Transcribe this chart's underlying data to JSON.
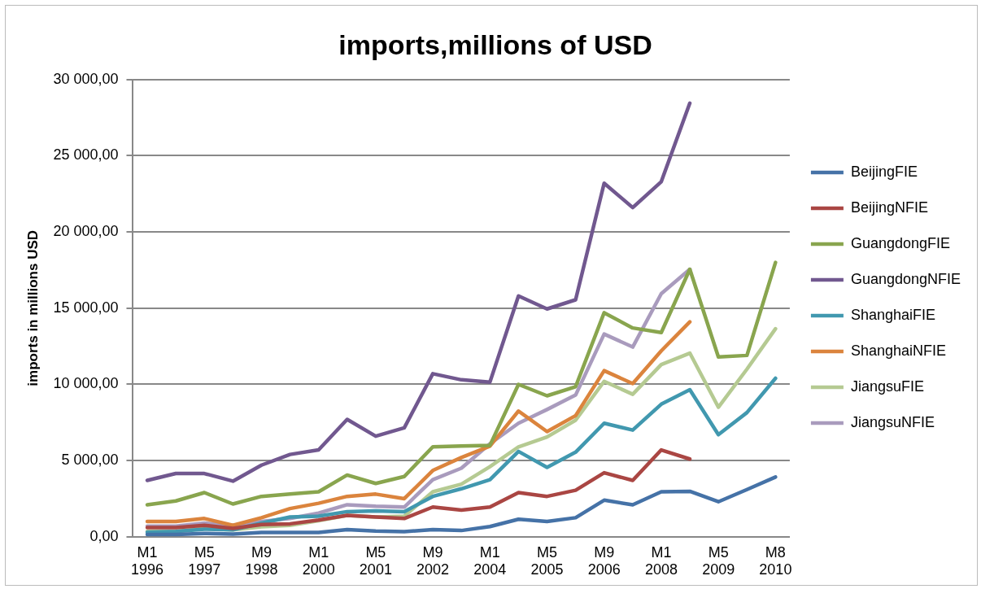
{
  "chart_data": {
    "type": "line",
    "title": "imports,millions of USD",
    "ylabel": "imports in millions USD",
    "categories": [
      "M1 1996",
      null,
      "M5 1997",
      null,
      "M9 1998",
      null,
      "M1 2000",
      null,
      "M5 2001",
      null,
      "M9 2002",
      null,
      "M1 2004",
      null,
      "M5 2005",
      null,
      "M9 2006",
      null,
      "M1 2008",
      null,
      "M5 2009",
      null,
      "M8 2010"
    ],
    "ylim": [
      0,
      30000
    ],
    "yticks": [
      {
        "value": 0,
        "label": "0,00"
      },
      {
        "value": 5000,
        "label": "5 000,00"
      },
      {
        "value": 10000,
        "label": "10 000,00"
      },
      {
        "value": 15000,
        "label": "15 000,00"
      },
      {
        "value": 20000,
        "label": "20 000,00"
      },
      {
        "value": 25000,
        "label": "25 000,00"
      },
      {
        "value": 30000,
        "label": "30 000,00"
      }
    ],
    "grid": "y",
    "legend": "right",
    "marker": "none",
    "line_style": "solid",
    "series": [
      {
        "name": "BeijingFIE",
        "color": "#4572a7",
        "values": [
          150,
          150,
          220,
          180,
          280,
          280,
          280,
          470,
          370,
          340,
          470,
          410,
          670,
          1150,
          1000,
          1250,
          2400,
          2100,
          2950,
          2980,
          2300,
          3100,
          3920
        ]
      },
      {
        "name": "BeijingNFIE",
        "color": "#aa4643",
        "values": [
          600,
          600,
          750,
          550,
          800,
          850,
          1100,
          1400,
          1300,
          1200,
          1950,
          1750,
          1950,
          2900,
          2650,
          3050,
          4200,
          3700,
          5700,
          5100,
          null,
          null,
          null
        ]
      },
      {
        "name": "GuangdongFIE",
        "color": "#89a54e",
        "values": [
          2100,
          2350,
          2900,
          2150,
          2650,
          2800,
          2950,
          4050,
          3500,
          3950,
          5900,
          5950,
          6000,
          10000,
          9250,
          9850,
          14700,
          13700,
          13400,
          17550,
          11800,
          11900,
          18000
        ]
      },
      {
        "name": "GuangdongNFIE",
        "color": "#71588f",
        "values": [
          3700,
          4150,
          4150,
          3650,
          4700,
          5400,
          5700,
          7700,
          6600,
          7150,
          10700,
          10300,
          10150,
          15800,
          14950,
          15550,
          23200,
          21600,
          23300,
          28450,
          null,
          null,
          null
        ]
      },
      {
        "name": "ShanghaiFIE",
        "color": "#4198af",
        "values": [
          300,
          350,
          500,
          450,
          900,
          1300,
          1350,
          1650,
          1700,
          1650,
          2650,
          3150,
          3750,
          5600,
          4550,
          5550,
          7450,
          7000,
          8700,
          9650,
          6700,
          8150,
          10400
        ]
      },
      {
        "name": "ShanghaiNFIE",
        "color": "#db843d",
        "values": [
          1000,
          1000,
          1200,
          750,
          1250,
          1850,
          2200,
          2650,
          2800,
          2500,
          4350,
          5200,
          5950,
          8250,
          6900,
          7950,
          10900,
          10050,
          12200,
          14100,
          null,
          null,
          null
        ]
      },
      {
        "name": "JiangsuFIE",
        "color": "#b5ca92",
        "values": [
          350,
          350,
          550,
          450,
          650,
          750,
          1050,
          1400,
          1300,
          1350,
          2950,
          3450,
          4600,
          5900,
          6550,
          7650,
          10200,
          9350,
          11300,
          12050,
          8500,
          11000,
          13650
        ]
      },
      {
        "name": "JiangsuNFIE",
        "color": "#a99bbd",
        "values": [
          700,
          700,
          900,
          750,
          1000,
          1200,
          1550,
          2100,
          2000,
          1950,
          3750,
          4500,
          6100,
          7450,
          8350,
          9300,
          13300,
          12450,
          15950,
          17550,
          null,
          null,
          null
        ]
      }
    ]
  }
}
